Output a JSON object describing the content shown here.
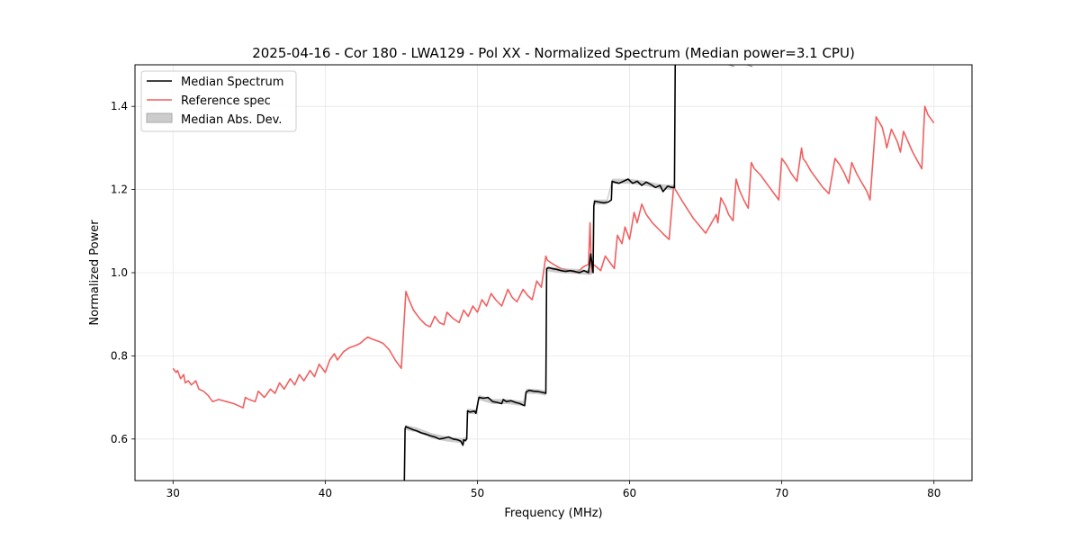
{
  "chart_data": {
    "type": "line",
    "title": "2025-04-16 - Cor 180 - LWA129 - Pol XX - Normalized Spectrum (Median power=3.1 CPU)",
    "xlabel": "Frequency (MHz)",
    "ylabel": "Normalized Power",
    "xlim": [
      27.5,
      82.5
    ],
    "ylim": [
      0.5,
      1.5
    ],
    "xticks": [
      30,
      40,
      50,
      60,
      70,
      80
    ],
    "xtick_labels": [
      "30",
      "40",
      "50",
      "60",
      "70",
      "80"
    ],
    "yticks": [
      0.6,
      0.8,
      1.0,
      1.2,
      1.4
    ],
    "ytick_labels": [
      "0.6",
      "0.8",
      "1.0",
      "1.2",
      "1.4"
    ],
    "grid": true,
    "legend_position": "top-left",
    "legend": [
      "Median Spectrum",
      "Reference spec",
      "Median Abs. Dev."
    ],
    "colors": {
      "median": "#000000",
      "reference": "#f06060",
      "mad": "#aaaaaa"
    },
    "series": [
      {
        "name": "Reference spec",
        "x": [
          30.0,
          30.2,
          30.3,
          30.5,
          30.7,
          30.8,
          31.0,
          31.2,
          31.5,
          31.7,
          32.0,
          32.3,
          32.6,
          33.0,
          33.5,
          34.0,
          34.3,
          34.6,
          34.75,
          35.0,
          35.4,
          35.6,
          36.0,
          36.4,
          36.7,
          37.0,
          37.3,
          37.7,
          38.0,
          38.3,
          38.6,
          39.0,
          39.3,
          39.6,
          40.0,
          40.3,
          40.6,
          40.8,
          41.2,
          41.6,
          42.0,
          42.3,
          42.6,
          42.8,
          43.1,
          43.5,
          43.8,
          44.2,
          44.6,
          45.0,
          45.3,
          45.5,
          45.8,
          46.2,
          46.6,
          46.9,
          47.2,
          47.5,
          47.8,
          48.0,
          48.4,
          48.8,
          49.1,
          49.4,
          49.7,
          50.0,
          50.3,
          50.6,
          50.9,
          51.2,
          51.6,
          52.0,
          52.3,
          52.6,
          53.0,
          53.3,
          53.6,
          53.9,
          54.2,
          54.5,
          54.6,
          55.0,
          55.5,
          56.0,
          56.5,
          57.0,
          57.3,
          57.4,
          57.5,
          57.6,
          57.8,
          58.1,
          58.4,
          58.7,
          59.0,
          59.2,
          59.5,
          59.7,
          60.0,
          60.3,
          60.5,
          60.8,
          61.1,
          61.5,
          61.9,
          62.3,
          62.6,
          62.9,
          63.0,
          63.5,
          64.2,
          65.0,
          65.7,
          65.8,
          66.0,
          66.3,
          66.5,
          66.8,
          67.0,
          67.2,
          67.5,
          67.8,
          68.0,
          68.2,
          68.6,
          69.0,
          69.4,
          69.8,
          70.0,
          70.3,
          70.6,
          71.0,
          71.3,
          71.4,
          71.6,
          71.9,
          72.3,
          72.7,
          73.1,
          73.5,
          73.8,
          74.1,
          74.4,
          74.6,
          74.9,
          75.2,
          75.6,
          75.8,
          76.2,
          76.6,
          76.8,
          76.9,
          77.2,
          77.6,
          77.8,
          78.0,
          78.3,
          78.6,
          78.9,
          79.2,
          79.4,
          79.6,
          80.0
        ],
        "values": [
          0.77,
          0.76,
          0.765,
          0.745,
          0.755,
          0.735,
          0.74,
          0.73,
          0.74,
          0.72,
          0.715,
          0.705,
          0.69,
          0.695,
          0.69,
          0.685,
          0.68,
          0.675,
          0.7,
          0.695,
          0.69,
          0.715,
          0.7,
          0.72,
          0.71,
          0.735,
          0.72,
          0.745,
          0.73,
          0.755,
          0.74,
          0.765,
          0.75,
          0.78,
          0.76,
          0.79,
          0.805,
          0.79,
          0.81,
          0.82,
          0.825,
          0.83,
          0.84,
          0.845,
          0.84,
          0.835,
          0.83,
          0.815,
          0.79,
          0.77,
          0.955,
          0.935,
          0.91,
          0.89,
          0.875,
          0.87,
          0.895,
          0.88,
          0.875,
          0.905,
          0.89,
          0.88,
          0.91,
          0.895,
          0.92,
          0.905,
          0.935,
          0.92,
          0.95,
          0.935,
          0.92,
          0.96,
          0.94,
          0.93,
          0.96,
          0.945,
          0.935,
          0.98,
          0.965,
          1.04,
          1.03,
          1.02,
          1.01,
          1.005,
          1.0,
          1.015,
          1.02,
          1.12,
          1.0,
          1.02,
          1.015,
          1.005,
          1.04,
          1.025,
          1.01,
          1.09,
          1.07,
          1.11,
          1.08,
          1.145,
          1.12,
          1.165,
          1.14,
          1.12,
          1.105,
          1.09,
          1.08,
          1.21,
          1.2,
          1.17,
          1.13,
          1.095,
          1.14,
          1.12,
          1.18,
          1.16,
          1.14,
          1.125,
          1.225,
          1.2,
          1.175,
          1.155,
          1.265,
          1.25,
          1.235,
          1.215,
          1.195,
          1.175,
          1.275,
          1.26,
          1.24,
          1.22,
          1.3,
          1.275,
          1.265,
          1.245,
          1.225,
          1.205,
          1.19,
          1.275,
          1.26,
          1.24,
          1.215,
          1.265,
          1.24,
          1.22,
          1.195,
          1.175,
          1.375,
          1.35,
          1.32,
          1.3,
          1.345,
          1.315,
          1.29,
          1.34,
          1.315,
          1.29,
          1.27,
          1.25,
          1.4,
          1.38,
          1.36
        ]
      },
      {
        "name": "Median Spectrum",
        "x": [
          45.2,
          45.25,
          45.3,
          45.4,
          45.6,
          45.8,
          46.0,
          46.3,
          46.6,
          46.9,
          47.2,
          47.5,
          47.8,
          48.1,
          48.4,
          48.7,
          48.9,
          49.05,
          49.1,
          49.2,
          49.3,
          49.35,
          49.5,
          49.8,
          49.9,
          50.1,
          50.4,
          50.7,
          51.0,
          51.3,
          51.6,
          51.7,
          51.9,
          52.2,
          52.5,
          52.8,
          53.1,
          53.2,
          53.4,
          53.7,
          54.0,
          54.3,
          54.5,
          54.55,
          54.7,
          54.9,
          55.2,
          55.5,
          55.8,
          56.1,
          56.4,
          56.7,
          57.0,
          57.3,
          57.45,
          57.6,
          57.65,
          57.7,
          58.0,
          58.3,
          58.6,
          58.8,
          58.85,
          59.0,
          59.3,
          59.6,
          59.9,
          60.2,
          60.5,
          60.8,
          61.1,
          61.4,
          61.7,
          62.0,
          62.2,
          62.5,
          62.8,
          62.95,
          63.0
        ],
        "values": [
          0.5,
          0.625,
          0.63,
          0.628,
          0.625,
          0.622,
          0.62,
          0.615,
          0.612,
          0.608,
          0.605,
          0.6,
          0.602,
          0.605,
          0.6,
          0.598,
          0.595,
          0.585,
          0.598,
          0.596,
          0.6,
          0.668,
          0.665,
          0.667,
          0.662,
          0.7,
          0.698,
          0.7,
          0.69,
          0.688,
          0.685,
          0.695,
          0.69,
          0.692,
          0.688,
          0.685,
          0.68,
          0.713,
          0.717,
          0.715,
          0.714,
          0.712,
          0.71,
          1.01,
          1.012,
          1.01,
          1.008,
          1.005,
          1.003,
          1.005,
          1.003,
          1.0,
          1.005,
          1.0,
          1.045,
          1.0,
          1.16,
          1.172,
          1.17,
          1.168,
          1.17,
          1.175,
          1.22,
          1.218,
          1.215,
          1.22,
          1.225,
          1.215,
          1.22,
          1.21,
          1.218,
          1.212,
          1.205,
          1.21,
          1.195,
          1.208,
          1.205,
          1.205,
          1.52
        ]
      },
      {
        "name": "Median Abs. Dev.",
        "x": [
          45.25,
          46.0,
          47.0,
          48.0,
          49.0,
          49.3,
          49.35,
          50.0,
          50.1,
          51.0,
          52.0,
          53.0,
          53.2,
          54.0,
          54.5,
          54.55,
          55.5,
          56.5,
          57.5,
          57.65,
          58.5,
          58.85,
          60.0,
          61.0,
          62.0,
          63.0
        ],
        "values": [
          0.628,
          0.622,
          0.608,
          0.6,
          0.596,
          0.6,
          0.667,
          0.665,
          0.7,
          0.69,
          0.69,
          0.685,
          0.715,
          0.714,
          0.71,
          1.01,
          1.005,
          1.003,
          1.0,
          1.17,
          1.17,
          1.22,
          1.22,
          1.215,
          1.207,
          1.205
        ],
        "spread": 0.006
      }
    ],
    "offscale_marks": [
      {
        "x": 66.7,
        "value": 1.5
      },
      {
        "x": 67.9,
        "value": 1.5
      }
    ]
  }
}
